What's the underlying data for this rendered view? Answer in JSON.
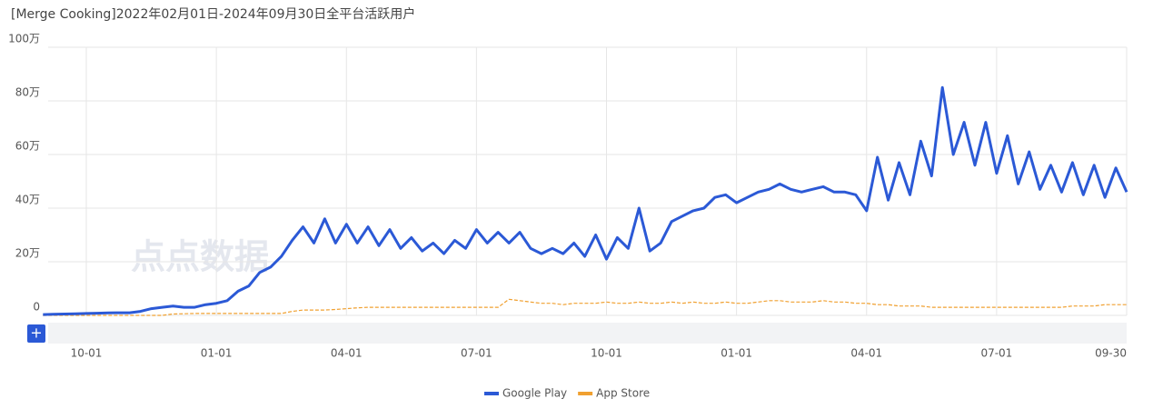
{
  "chart_data": {
    "type": "line",
    "title": "[Merge Cooking]2022年02月01日-2024年09月30日全平台活跃用户",
    "watermark": "点点数据",
    "button": "+",
    "categories": [
      null,
      null,
      null,
      null,
      "10-01",
      null,
      null,
      null,
      null,
      null,
      null,
      null,
      null,
      null,
      null,
      null,
      "01-01",
      null,
      null,
      null,
      null,
      null,
      null,
      null,
      null,
      null,
      null,
      null,
      "04-01",
      null,
      null,
      null,
      null,
      null,
      null,
      null,
      null,
      null,
      null,
      null,
      "07-01",
      null,
      null,
      null,
      null,
      null,
      null,
      null,
      null,
      null,
      null,
      null,
      "10-01",
      null,
      null,
      null,
      null,
      null,
      null,
      null,
      null,
      null,
      null,
      null,
      "01-01",
      null,
      null,
      null,
      null,
      null,
      null,
      null,
      null,
      null,
      null,
      null,
      "04-01",
      null,
      null,
      null,
      null,
      null,
      null,
      null,
      null,
      null,
      null,
      null,
      "07-01",
      null,
      null,
      null,
      null,
      null,
      null,
      null,
      null,
      null,
      null,
      null,
      "09-30"
    ],
    "series": [
      {
        "name": "Google Play",
        "color": "#2b59d6",
        "values": [
          0.3,
          0.4,
          0.5,
          0.6,
          0.7,
          0.8,
          0.9,
          1,
          1,
          1.5,
          2.5,
          3,
          3.5,
          3,
          3,
          4,
          4.5,
          5.5,
          9,
          11,
          16,
          18,
          22,
          28,
          33,
          27,
          36,
          27,
          34,
          27,
          33,
          26,
          32,
          25,
          29,
          24,
          27,
          23,
          28,
          25,
          32,
          27,
          31,
          27,
          31,
          25,
          23,
          25,
          23,
          27,
          22,
          30,
          21,
          29,
          25,
          40,
          24,
          27,
          35,
          37,
          39,
          40,
          44,
          45,
          42,
          44,
          46,
          47,
          49,
          47,
          46,
          47,
          48,
          46,
          46,
          45,
          39,
          59,
          43,
          57,
          45,
          65,
          52,
          85,
          60,
          72,
          56,
          72,
          53,
          67,
          49,
          61,
          47,
          56,
          46,
          57,
          45,
          56,
          44,
          55,
          46
        ]
      },
      {
        "name": "App Store",
        "color": "#f0a030",
        "dashed": true,
        "values": [
          0,
          0,
          0,
          0,
          0,
          0,
          0,
          0,
          0,
          0,
          0,
          0,
          0.5,
          0.6,
          0.7,
          0.7,
          0.7,
          0.7,
          0.7,
          0.7,
          0.7,
          0.7,
          0.7,
          1.5,
          2,
          2,
          2,
          2.2,
          2.5,
          2.8,
          3,
          3,
          3,
          3,
          3,
          3,
          3,
          3,
          3,
          3,
          3,
          3,
          3,
          6,
          5.5,
          5,
          4.5,
          4.5,
          4,
          4.5,
          4.5,
          4.5,
          5,
          4.5,
          4.5,
          5,
          4.5,
          4.5,
          5,
          4.5,
          5,
          4.5,
          4.5,
          5,
          4.5,
          4.5,
          5,
          5.5,
          5.5,
          5,
          5,
          5,
          5.5,
          5,
          5,
          4.5,
          4.5,
          4,
          4,
          3.5,
          3.5,
          3.5,
          3,
          3,
          3,
          3,
          3,
          3,
          3,
          3,
          3,
          3,
          3,
          3,
          3,
          3.5,
          3.5,
          3.5,
          4,
          4,
          4
        ]
      }
    ],
    "ylim": [
      0,
      100
    ],
    "yticks": [
      0,
      {
        "value": 20,
        "label": "20万"
      },
      {
        "value": 40,
        "label": "40万"
      },
      {
        "value": 60,
        "label": "60万"
      },
      {
        "value": 80,
        "label": "80万"
      },
      {
        "value": 100,
        "label": "100万"
      }
    ],
    "grid": true,
    "legend": "bottom"
  }
}
